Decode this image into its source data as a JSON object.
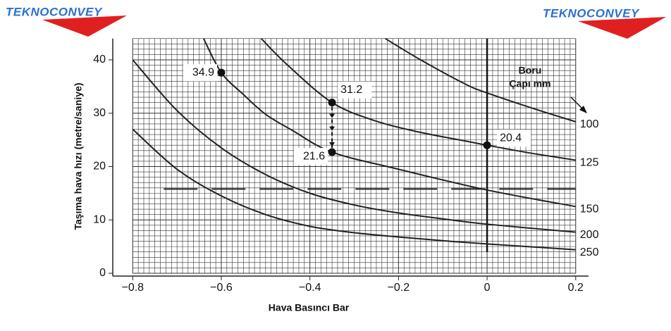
{
  "logo": "TEKNOCONVEY",
  "chart_data": {
    "type": "line",
    "x_label": "Hava Basıncı Bar",
    "y_label": "Taşıma hava hızı (metre/saniye)",
    "legend_title": [
      "Boru",
      "Çapı mm"
    ],
    "xlim": [
      -0.845,
      0.229
    ],
    "ylim": [
      0,
      44
    ],
    "xticks": [
      {
        "value": -0.8,
        "label": "−0.8"
      },
      {
        "value": -0.6,
        "label": "−0.6"
      },
      {
        "value": -0.4,
        "label": "−0.4"
      },
      {
        "value": -0.2,
        "label": "−0.2"
      },
      0,
      0.2
    ],
    "yticks": [
      0,
      10,
      20,
      30,
      40
    ],
    "grid": true,
    "series": [
      {
        "name": "100",
        "color": "#222222",
        "x": [
          -0.23,
          -0.15,
          -0.05,
          0,
          0.1,
          0.2
        ],
        "values": [
          44,
          40,
          35.5,
          33.8,
          31,
          28.4
        ]
      },
      {
        "name": "125",
        "color": "#222222",
        "x": [
          -0.51,
          -0.45,
          -0.35,
          -0.25,
          -0.15,
          -0.05,
          0,
          0.1,
          0.2
        ],
        "values": [
          44,
          39,
          32,
          28.5,
          26.4,
          24.8,
          24,
          22.5,
          21.2
        ]
      },
      {
        "name": "150",
        "color": "#222222",
        "x": [
          -0.64,
          -0.6,
          -0.55,
          -0.5,
          -0.44,
          -0.35,
          -0.2,
          0,
          0.2
        ],
        "values": [
          44,
          37.6,
          33.5,
          29.8,
          26.8,
          22.7,
          19.5,
          15.6,
          12.5
        ]
      },
      {
        "name": "200",
        "color": "#222222",
        "x": [
          -0.8,
          -0.7,
          -0.6,
          -0.5,
          -0.4,
          -0.3,
          -0.2,
          -0.1,
          0,
          0.2
        ],
        "values": [
          40,
          30.5,
          23.5,
          18.5,
          15,
          12.8,
          11.3,
          10.2,
          9.2,
          7.7
        ]
      },
      {
        "name": "250",
        "color": "#222222",
        "x": [
          -0.8,
          -0.7,
          -0.6,
          -0.5,
          -0.4,
          -0.3,
          -0.2,
          -0.1,
          0,
          0.2
        ],
        "values": [
          27,
          19.5,
          14.5,
          11,
          8.8,
          7.6,
          6.8,
          6.1,
          5.5,
          4.4
        ]
      }
    ],
    "annotations": [
      {
        "text": "34.9",
        "x": -0.6,
        "y": 37.6
      },
      {
        "text": "31.2",
        "x": -0.35,
        "y": 32
      },
      {
        "text": "21.6",
        "x": -0.35,
        "y": 22.7
      },
      {
        "text": "20.4",
        "x": 0,
        "y": 24
      }
    ],
    "hline": {
      "y": 15.8,
      "x": [
        -0.73,
        0.2
      ]
    },
    "vline": {
      "x": 0,
      "y": [
        4,
        44
      ]
    }
  }
}
